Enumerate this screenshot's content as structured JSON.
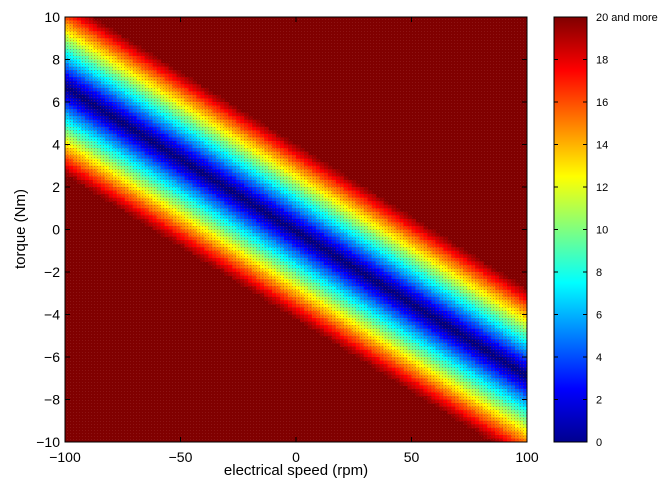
{
  "chart_data": {
    "type": "heatmap",
    "title": "",
    "xlabel": "electrical speed (rpm)",
    "ylabel": "torque (Nm)",
    "xlim": [
      -100,
      100
    ],
    "ylim": [
      -10,
      10
    ],
    "x_ticks": [
      -100,
      -50,
      0,
      50,
      100
    ],
    "y_ticks": [
      -10,
      -8,
      -6,
      -4,
      -2,
      0,
      2,
      4,
      6,
      8,
      10
    ],
    "x_tick_labels": [
      "−100",
      "−50",
      "0",
      "50",
      "100"
    ],
    "y_tick_labels": [
      "−10",
      "−8",
      "−6",
      "−4",
      "−2",
      "0",
      "2",
      "4",
      "6",
      "8",
      "10"
    ],
    "colormap": "jet",
    "colorbar": {
      "min": 0,
      "max": 20,
      "ticks": [
        0,
        2,
        4,
        6,
        8,
        10,
        12,
        14,
        16,
        18
      ],
      "tick_labels": [
        "0",
        "2",
        "4",
        "6",
        "8",
        "10",
        "12",
        "14",
        "16",
        "18"
      ],
      "top_label": "20 and more"
    },
    "band": {
      "description_of_minimum": "value is minimal along a diagonal line and grows with distance from it",
      "minimum_line_at_x_min": 6.7,
      "minimum_line_at_x_max": -6.9,
      "value_per_unit_torque_offset": 4.9,
      "saturation_value": 20
    },
    "saturation_color": "#800000"
  }
}
